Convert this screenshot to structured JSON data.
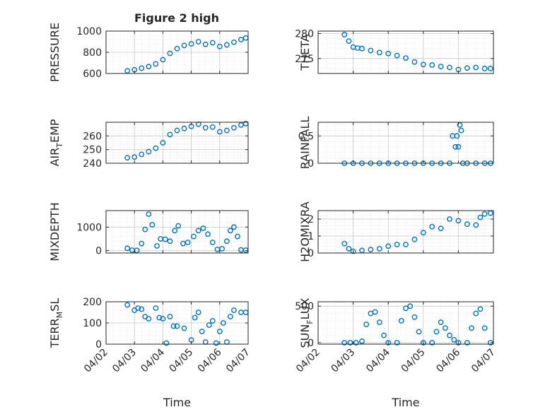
{
  "title": "Figure 2 high",
  "series_color": "#0072BD",
  "chart_data": [
    {
      "type": "scatter",
      "ylabel": "PRESSURE",
      "xlabel": "",
      "xlim": [
        "2016-04-02",
        "2016-04-07"
      ],
      "xticks": [
        "04/02",
        "04/03",
        "04/04",
        "04/05",
        "04/06",
        "04/07"
      ],
      "ylim": [
        600,
        1000
      ],
      "yticks": [
        600,
        800,
        1000
      ],
      "x": [
        "2016-04-02 18:00",
        "2016-04-03 00:00",
        "2016-04-03 06:00",
        "2016-04-03 12:00",
        "2016-04-03 18:00",
        "2016-04-04 00:00",
        "2016-04-04 06:00",
        "2016-04-04 12:00",
        "2016-04-04 18:00",
        "2016-04-05 00:00",
        "2016-04-05 06:00",
        "2016-04-05 12:00",
        "2016-04-05 18:00",
        "2016-04-06 00:00",
        "2016-04-06 06:00",
        "2016-04-06 12:00",
        "2016-04-06 18:00",
        "2016-04-06 22:00"
      ],
      "y": [
        625,
        635,
        650,
        665,
        690,
        730,
        790,
        835,
        865,
        880,
        900,
        875,
        890,
        855,
        870,
        895,
        920,
        935
      ]
    },
    {
      "type": "scatter",
      "ylabel": "THETA",
      "xlabel": "",
      "xlim": [
        "2016-04-02",
        "2016-04-07"
      ],
      "xticks": [
        "04/02",
        "04/03",
        "04/04",
        "04/05",
        "04/06",
        "04/07"
      ],
      "ylim": [
        272,
        280.5
      ],
      "yticks": [
        275,
        280
      ],
      "x": [
        "2016-04-02 18:00",
        "2016-04-02 21:00",
        "2016-04-03 00:00",
        "2016-04-03 03:00",
        "2016-04-03 06:00",
        "2016-04-03 12:00",
        "2016-04-03 18:00",
        "2016-04-04 00:00",
        "2016-04-04 06:00",
        "2016-04-04 12:00",
        "2016-04-04 18:00",
        "2016-04-05 00:00",
        "2016-04-05 06:00",
        "2016-04-05 12:00",
        "2016-04-05 18:00",
        "2016-04-06 00:00",
        "2016-04-06 06:00",
        "2016-04-06 12:00",
        "2016-04-06 18:00",
        "2016-04-06 22:00"
      ],
      "y": [
        279.8,
        278.5,
        277.3,
        277.1,
        277.0,
        276.6,
        276.2,
        276.0,
        275.6,
        275.1,
        274.3,
        273.8,
        273.7,
        273.4,
        273.2,
        272.8,
        273.1,
        273.2,
        273.0,
        273.0
      ]
    },
    {
      "type": "scatter",
      "ylabel": "AIR",
      "ylabel_sub": "T",
      "ylabel_tail": "EMP",
      "xlabel": "",
      "xlim": [
        "2016-04-02",
        "2016-04-07"
      ],
      "xticks": [
        "04/02",
        "04/03",
        "04/04",
        "04/05",
        "04/06",
        "04/07"
      ],
      "ylim": [
        240,
        270
      ],
      "yticks": [
        240,
        250,
        260
      ],
      "x": [
        "2016-04-02 18:00",
        "2016-04-03 00:00",
        "2016-04-03 06:00",
        "2016-04-03 12:00",
        "2016-04-03 18:00",
        "2016-04-04 00:00",
        "2016-04-04 06:00",
        "2016-04-04 12:00",
        "2016-04-04 18:00",
        "2016-04-05 00:00",
        "2016-04-05 06:00",
        "2016-04-05 12:00",
        "2016-04-05 18:00",
        "2016-04-06 00:00",
        "2016-04-06 06:00",
        "2016-04-06 12:00",
        "2016-04-06 18:00",
        "2016-04-06 22:00"
      ],
      "y": [
        244,
        244.5,
        246.5,
        248.5,
        251,
        255,
        261,
        264,
        265.5,
        267,
        268.5,
        266,
        266.5,
        263,
        264,
        266,
        268,
        269
      ]
    },
    {
      "type": "scatter",
      "ylabel": "RAINFALL",
      "xlabel": "",
      "xlim": [
        "2016-04-02",
        "2016-04-07"
      ],
      "xticks": [
        "04/02",
        "04/03",
        "04/04",
        "04/05",
        "04/06",
        "04/07"
      ],
      "ylim": [
        0,
        0.75
      ],
      "yticks": [
        0,
        0.5
      ],
      "x": [
        "2016-04-02 18:00",
        "2016-04-03 00:00",
        "2016-04-03 06:00",
        "2016-04-03 12:00",
        "2016-04-03 18:00",
        "2016-04-04 00:00",
        "2016-04-04 06:00",
        "2016-04-04 12:00",
        "2016-04-04 18:00",
        "2016-04-05 00:00",
        "2016-04-05 06:00",
        "2016-04-05 12:00",
        "2016-04-05 18:00",
        "2016-04-05 20:00",
        "2016-04-05 22:00",
        "2016-04-05 23:00",
        "2016-04-06 00:00",
        "2016-04-06 01:00",
        "2016-04-06 02:00",
        "2016-04-06 03:00",
        "2016-04-06 06:00",
        "2016-04-06 12:00",
        "2016-04-06 18:00",
        "2016-04-06 22:00"
      ],
      "y": [
        0,
        0,
        0,
        0,
        0,
        0,
        0,
        0,
        0,
        0,
        0,
        0,
        0,
        0.5,
        0.3,
        0.5,
        0.3,
        0.7,
        0.6,
        0,
        0,
        0,
        0,
        0
      ]
    },
    {
      "type": "scatter",
      "ylabel": "MIXDEPTH",
      "xlabel": "",
      "xlim": [
        "2016-04-02",
        "2016-04-07"
      ],
      "xticks": [
        "04/02",
        "04/03",
        "04/04",
        "04/05",
        "04/06",
        "04/07"
      ],
      "ylim": [
        -100,
        1700
      ],
      "yticks": [
        0,
        1000
      ],
      "x": [
        "2016-04-02 18:00",
        "2016-04-02 22:00",
        "2016-04-03 02:00",
        "2016-04-03 06:00",
        "2016-04-03 09:00",
        "2016-04-03 12:00",
        "2016-04-03 15:00",
        "2016-04-03 19:00",
        "2016-04-03 22:00",
        "2016-04-04 02:00",
        "2016-04-04 06:00",
        "2016-04-04 10:00",
        "2016-04-04 13:00",
        "2016-04-04 17:00",
        "2016-04-04 21:00",
        "2016-04-05 02:00",
        "2016-04-05 06:00",
        "2016-04-05 10:00",
        "2016-04-05 14:00",
        "2016-04-05 18:00",
        "2016-04-05 22:00",
        "2016-04-06 02:00",
        "2016-04-06 06:00",
        "2016-04-06 09:00",
        "2016-04-06 12:00",
        "2016-04-06 15:00",
        "2016-04-06 18:00",
        "2016-04-06 22:00"
      ],
      "y": [
        100,
        20,
        10,
        300,
        900,
        1550,
        1100,
        200,
        500,
        480,
        400,
        850,
        1050,
        300,
        350,
        600,
        850,
        950,
        700,
        350,
        50,
        80,
        400,
        850,
        1000,
        600,
        30,
        20
      ]
    },
    {
      "type": "scatter",
      "ylabel": "H2OMIXRA",
      "xlabel": "",
      "xlim": [
        "2016-04-02",
        "2016-04-07"
      ],
      "xticks": [
        "04/02",
        "04/03",
        "04/04",
        "04/05",
        "04/06",
        "04/07"
      ],
      "ylim": [
        0,
        2.5
      ],
      "yticks": [
        0,
        1,
        2
      ],
      "x": [
        "2016-04-02 18:00",
        "2016-04-02 21:00",
        "2016-04-03 00:00",
        "2016-04-03 06:00",
        "2016-04-03 12:00",
        "2016-04-03 18:00",
        "2016-04-04 00:00",
        "2016-04-04 06:00",
        "2016-04-04 12:00",
        "2016-04-04 18:00",
        "2016-04-05 00:00",
        "2016-04-05 06:00",
        "2016-04-05 12:00",
        "2016-04-05 18:00",
        "2016-04-06 00:00",
        "2016-04-06 06:00",
        "2016-04-06 12:00",
        "2016-04-06 15:00",
        "2016-04-06 18:00",
        "2016-04-06 22:00"
      ],
      "y": [
        0.55,
        0.25,
        0.1,
        0.15,
        0.2,
        0.25,
        0.4,
        0.5,
        0.5,
        0.8,
        1.2,
        1.55,
        1.45,
        2.0,
        1.9,
        1.7,
        1.65,
        2.1,
        2.3,
        2.35
      ]
    },
    {
      "type": "scatter",
      "ylabel": "TERR",
      "ylabel_sub": "M",
      "ylabel_tail": "SL",
      "xlabel": "Time",
      "xlim": [
        "2016-04-02",
        "2016-04-07"
      ],
      "xticks": [
        "04/02",
        "04/03",
        "04/04",
        "04/05",
        "04/06",
        "04/07"
      ],
      "ylim": [
        0,
        200
      ],
      "yticks": [
        0,
        100,
        200
      ],
      "x": [
        "2016-04-02 18:00",
        "2016-04-03 00:00",
        "2016-04-03 03:00",
        "2016-04-03 06:00",
        "2016-04-03 09:00",
        "2016-04-03 12:00",
        "2016-04-03 18:00",
        "2016-04-03 21:00",
        "2016-04-04 00:00",
        "2016-04-04 03:00",
        "2016-04-04 06:00",
        "2016-04-04 09:00",
        "2016-04-04 12:00",
        "2016-04-04 18:00",
        "2016-04-05 00:00",
        "2016-04-05 03:00",
        "2016-04-05 06:00",
        "2016-04-05 09:00",
        "2016-04-05 12:00",
        "2016-04-05 15:00",
        "2016-04-05 18:00",
        "2016-04-05 21:00",
        "2016-04-06 00:00",
        "2016-04-06 03:00",
        "2016-04-06 06:00",
        "2016-04-06 09:00",
        "2016-04-06 12:00",
        "2016-04-06 18:00",
        "2016-04-06 22:00"
      ],
      "y": [
        185,
        160,
        170,
        165,
        130,
        120,
        170,
        125,
        120,
        5,
        130,
        85,
        85,
        75,
        20,
        125,
        150,
        60,
        10,
        90,
        110,
        5,
        60,
        100,
        10,
        130,
        160,
        150,
        150
      ]
    },
    {
      "type": "scatter",
      "ylabel": "SUN",
      "ylabel_sub": "F",
      "ylabel_tail": "LUX",
      "xlabel": "Time",
      "xlim": [
        "2016-04-02",
        "2016-04-07"
      ],
      "xticks": [
        "04/02",
        "04/03",
        "04/04",
        "04/05",
        "04/06",
        "04/07"
      ],
      "ylim": [
        -20,
        560
      ],
      "yticks": [
        0,
        500
      ],
      "x": [
        "2016-04-02 18:00",
        "2016-04-02 22:00",
        "2016-04-03 02:00",
        "2016-04-03 06:00",
        "2016-04-03 09:00",
        "2016-04-03 12:00",
        "2016-04-03 15:00",
        "2016-04-03 18:00",
        "2016-04-03 21:00",
        "2016-04-04 00:00",
        "2016-04-04 06:00",
        "2016-04-04 09:00",
        "2016-04-04 12:00",
        "2016-04-04 15:00",
        "2016-04-04 18:00",
        "2016-04-04 21:00",
        "2016-04-05 00:00",
        "2016-04-05 06:00",
        "2016-04-05 09:00",
        "2016-04-05 12:00",
        "2016-04-05 15:00",
        "2016-04-05 18:00",
        "2016-04-05 21:00",
        "2016-04-06 00:00",
        "2016-04-06 06:00",
        "2016-04-06 09:00",
        "2016-04-06 12:00",
        "2016-04-06 15:00",
        "2016-04-06 18:00",
        "2016-04-06 22:00"
      ],
      "y": [
        0,
        0,
        0,
        20,
        250,
        400,
        420,
        280,
        100,
        0,
        0,
        300,
        470,
        500,
        350,
        150,
        0,
        0,
        150,
        280,
        200,
        100,
        40,
        0,
        0,
        200,
        400,
        460,
        200,
        0
      ]
    }
  ]
}
